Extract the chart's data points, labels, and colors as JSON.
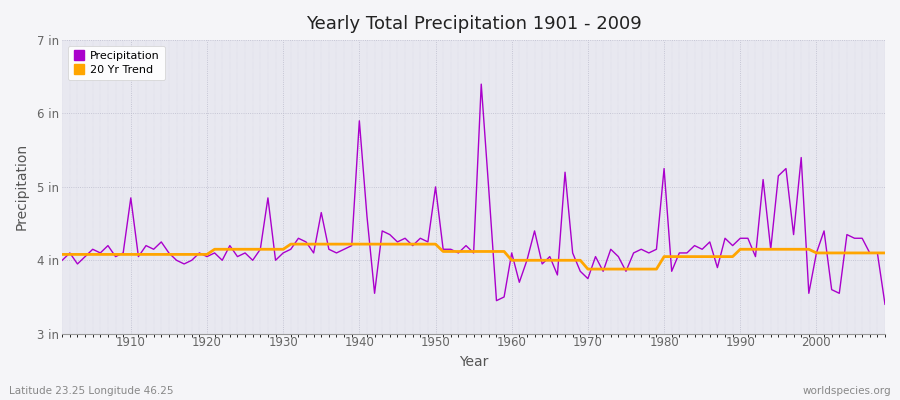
{
  "title": "Yearly Total Precipitation 1901 - 2009",
  "xlabel": "Year",
  "ylabel": "Precipitation",
  "bottom_left_label": "Latitude 23.25 Longitude 46.25",
  "bottom_right_label": "worldspecies.org",
  "legend_entries": [
    "Precipitation",
    "20 Yr Trend"
  ],
  "precip_color": "#AA00CC",
  "trend_color": "#FFA500",
  "bg_color": "#E8E8F0",
  "outer_bg": "#F5F5F8",
  "ylim": [
    3,
    7
  ],
  "yticks": [
    3,
    4,
    5,
    6,
    7
  ],
  "ytick_labels": [
    "3 in",
    "4 in",
    "5 in",
    "6 in",
    "7 in"
  ],
  "years": [
    1901,
    1902,
    1903,
    1904,
    1905,
    1906,
    1907,
    1908,
    1909,
    1910,
    1911,
    1912,
    1913,
    1914,
    1915,
    1916,
    1917,
    1918,
    1919,
    1920,
    1921,
    1922,
    1923,
    1924,
    1925,
    1926,
    1927,
    1928,
    1929,
    1930,
    1931,
    1932,
    1933,
    1934,
    1935,
    1936,
    1937,
    1938,
    1939,
    1940,
    1941,
    1942,
    1943,
    1944,
    1945,
    1946,
    1947,
    1948,
    1949,
    1950,
    1951,
    1952,
    1953,
    1954,
    1955,
    1956,
    1957,
    1958,
    1959,
    1960,
    1961,
    1962,
    1963,
    1964,
    1965,
    1966,
    1967,
    1968,
    1969,
    1970,
    1971,
    1972,
    1973,
    1974,
    1975,
    1976,
    1977,
    1978,
    1979,
    1980,
    1981,
    1982,
    1983,
    1984,
    1985,
    1986,
    1987,
    1988,
    1989,
    1990,
    1991,
    1992,
    1993,
    1994,
    1995,
    1996,
    1997,
    1998,
    1999,
    2000,
    2001,
    2002,
    2003,
    2004,
    2005,
    2006,
    2007,
    2008,
    2009
  ],
  "precip": [
    4.0,
    4.1,
    3.95,
    4.05,
    4.15,
    4.1,
    4.2,
    4.05,
    4.1,
    4.85,
    4.05,
    4.2,
    4.15,
    4.25,
    4.1,
    4.0,
    3.95,
    4.0,
    4.1,
    4.05,
    4.1,
    4.0,
    4.2,
    4.05,
    4.1,
    4.0,
    4.15,
    4.85,
    4.0,
    4.1,
    4.15,
    4.3,
    4.25,
    4.1,
    4.65,
    4.15,
    4.1,
    4.15,
    4.2,
    5.9,
    4.6,
    3.55,
    4.4,
    4.35,
    4.25,
    4.3,
    4.2,
    4.3,
    4.25,
    5.0,
    4.15,
    4.15,
    4.1,
    4.2,
    4.1,
    6.4,
    4.95,
    3.45,
    3.5,
    4.1,
    3.7,
    4.0,
    4.4,
    3.95,
    4.05,
    3.8,
    5.2,
    4.1,
    3.85,
    3.75,
    4.05,
    3.85,
    4.15,
    4.05,
    3.85,
    4.1,
    4.15,
    4.1,
    4.15,
    5.25,
    3.85,
    4.1,
    4.1,
    4.2,
    4.15,
    4.25,
    3.9,
    4.3,
    4.2,
    4.3,
    4.3,
    4.05,
    5.1,
    4.15,
    5.15,
    5.25,
    4.35,
    5.4,
    3.55,
    4.1,
    4.4,
    3.6,
    3.55,
    4.35,
    4.3,
    4.3,
    4.1,
    4.1,
    3.4
  ],
  "trend": [
    4.08,
    4.08,
    4.08,
    4.08,
    4.08,
    4.08,
    4.08,
    4.08,
    4.08,
    4.08,
    4.08,
    4.08,
    4.08,
    4.08,
    4.08,
    4.08,
    4.08,
    4.08,
    4.08,
    4.08,
    4.15,
    4.15,
    4.15,
    4.15,
    4.15,
    4.15,
    4.15,
    4.15,
    4.15,
    4.15,
    4.22,
    4.22,
    4.22,
    4.22,
    4.22,
    4.22,
    4.22,
    4.22,
    4.22,
    4.22,
    4.22,
    4.22,
    4.22,
    4.22,
    4.22,
    4.22,
    4.22,
    4.22,
    4.22,
    4.22,
    4.12,
    4.12,
    4.12,
    4.12,
    4.12,
    4.12,
    4.12,
    4.12,
    4.12,
    4.0,
    4.0,
    4.0,
    4.0,
    4.0,
    4.0,
    4.0,
    4.0,
    4.0,
    4.0,
    3.88,
    3.88,
    3.88,
    3.88,
    3.88,
    3.88,
    3.88,
    3.88,
    3.88,
    3.88,
    4.05,
    4.05,
    4.05,
    4.05,
    4.05,
    4.05,
    4.05,
    4.05,
    4.05,
    4.05,
    4.15,
    4.15,
    4.15,
    4.15,
    4.15,
    4.15,
    4.15,
    4.15,
    4.15,
    4.15,
    4.1,
    4.1,
    4.1,
    4.1,
    4.1,
    4.1,
    4.1,
    4.1,
    4.1,
    4.1
  ]
}
